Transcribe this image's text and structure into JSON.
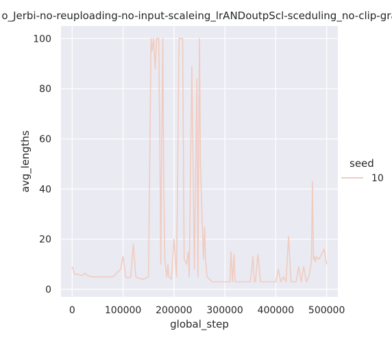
{
  "chart_data": {
    "type": "line",
    "title": "o_Jerbi-no-reuploading-no-input-scaleing_lrANDoutpScl-sceduling_no-clip-gra",
    "xlabel": "global_step",
    "ylabel": "avg_lengths",
    "xlim": [
      -22000,
      522000
    ],
    "ylim": [
      -3,
      105
    ],
    "xticks": [
      0,
      100000,
      200000,
      300000,
      400000,
      500000
    ],
    "xtick_labels": [
      "0",
      "100000",
      "200000",
      "300000",
      "400000",
      "500000"
    ],
    "yticks": [
      0,
      20,
      40,
      60,
      80,
      100
    ],
    "ytick_labels": [
      "0",
      "20",
      "40",
      "60",
      "80",
      "100"
    ],
    "grid": true,
    "legend": {
      "title": "seed",
      "placement": "right",
      "entries": [
        "10"
      ]
    },
    "colors": {
      "background": "#eaeaf2",
      "grid": "#ffffff",
      "line": "#f1cbbf"
    },
    "series": [
      {
        "name": "10",
        "x": [
          0,
          5000,
          10000,
          20000,
          25000,
          30000,
          40000,
          60000,
          80000,
          95000,
          100000,
          105000,
          110000,
          115000,
          120000,
          125000,
          130000,
          140000,
          150000,
          155000,
          157000,
          160000,
          163000,
          166000,
          170000,
          172000,
          174000,
          176000,
          178000,
          180000,
          182000,
          184000,
          186000,
          188000,
          190000,
          195000,
          200000,
          205000,
          210000,
          215000,
          217000,
          220000,
          225000,
          228000,
          230000,
          235000,
          240000,
          245000,
          247000,
          250000,
          252000,
          255000,
          258000,
          260000,
          262000,
          265000,
          270000,
          275000,
          280000,
          290000,
          300000,
          310000,
          312000,
          315000,
          318000,
          320000,
          330000,
          340000,
          350000,
          355000,
          358000,
          360000,
          365000,
          370000,
          375000,
          380000,
          390000,
          400000,
          405000,
          410000,
          415000,
          420000,
          425000,
          430000,
          440000,
          445000,
          450000,
          455000,
          460000,
          465000,
          470000,
          472000,
          474000,
          476000,
          478000,
          480000,
          485000,
          490000,
          495000,
          500000
        ],
        "y": [
          9,
          6,
          6,
          5.5,
          6.5,
          5.5,
          5,
          5,
          5,
          8,
          13,
          5,
          4.5,
          5,
          18,
          5,
          4.5,
          4,
          5,
          100,
          95,
          100,
          88,
          100,
          100,
          62,
          10,
          58,
          100,
          40,
          12,
          8,
          5,
          10,
          5,
          4,
          20,
          5,
          100,
          100,
          100,
          12,
          10,
          15,
          5,
          89,
          8,
          84,
          5,
          100,
          50,
          30,
          12,
          25,
          12,
          5,
          4,
          3,
          3,
          3,
          3,
          3,
          15,
          3,
          14,
          3,
          3,
          3,
          3,
          13,
          3,
          3,
          14,
          3,
          3,
          3,
          3,
          3,
          8,
          3,
          5,
          3,
          21,
          3,
          3,
          9,
          3,
          9,
          3,
          5,
          11,
          43,
          12,
          13,
          11,
          13,
          12,
          14,
          16,
          10
        ]
      }
    ]
  }
}
